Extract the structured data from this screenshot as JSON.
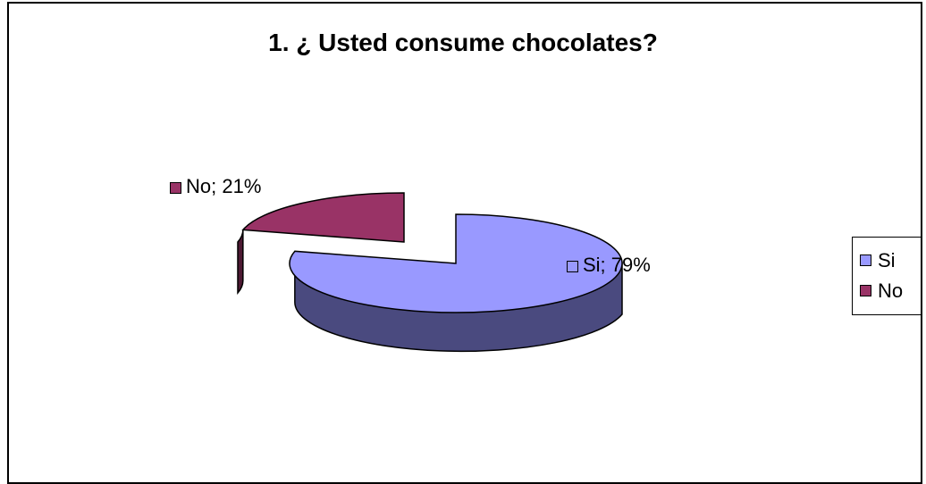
{
  "chart_data": {
    "type": "pie",
    "title": "1. ¿ Usted consume chocolates?",
    "slices": [
      {
        "name": "Si",
        "value": 79,
        "label": "Si; 79%",
        "color": "#9999ff",
        "side_color": "#4a4a7f"
      },
      {
        "name": "No",
        "value": 21,
        "label": "No; 21%",
        "color": "#993366",
        "side_color": "#4d1a33"
      }
    ],
    "legend": {
      "position": "right",
      "entries": [
        "Si",
        "No"
      ]
    },
    "exploded": "No",
    "three_d": true
  }
}
